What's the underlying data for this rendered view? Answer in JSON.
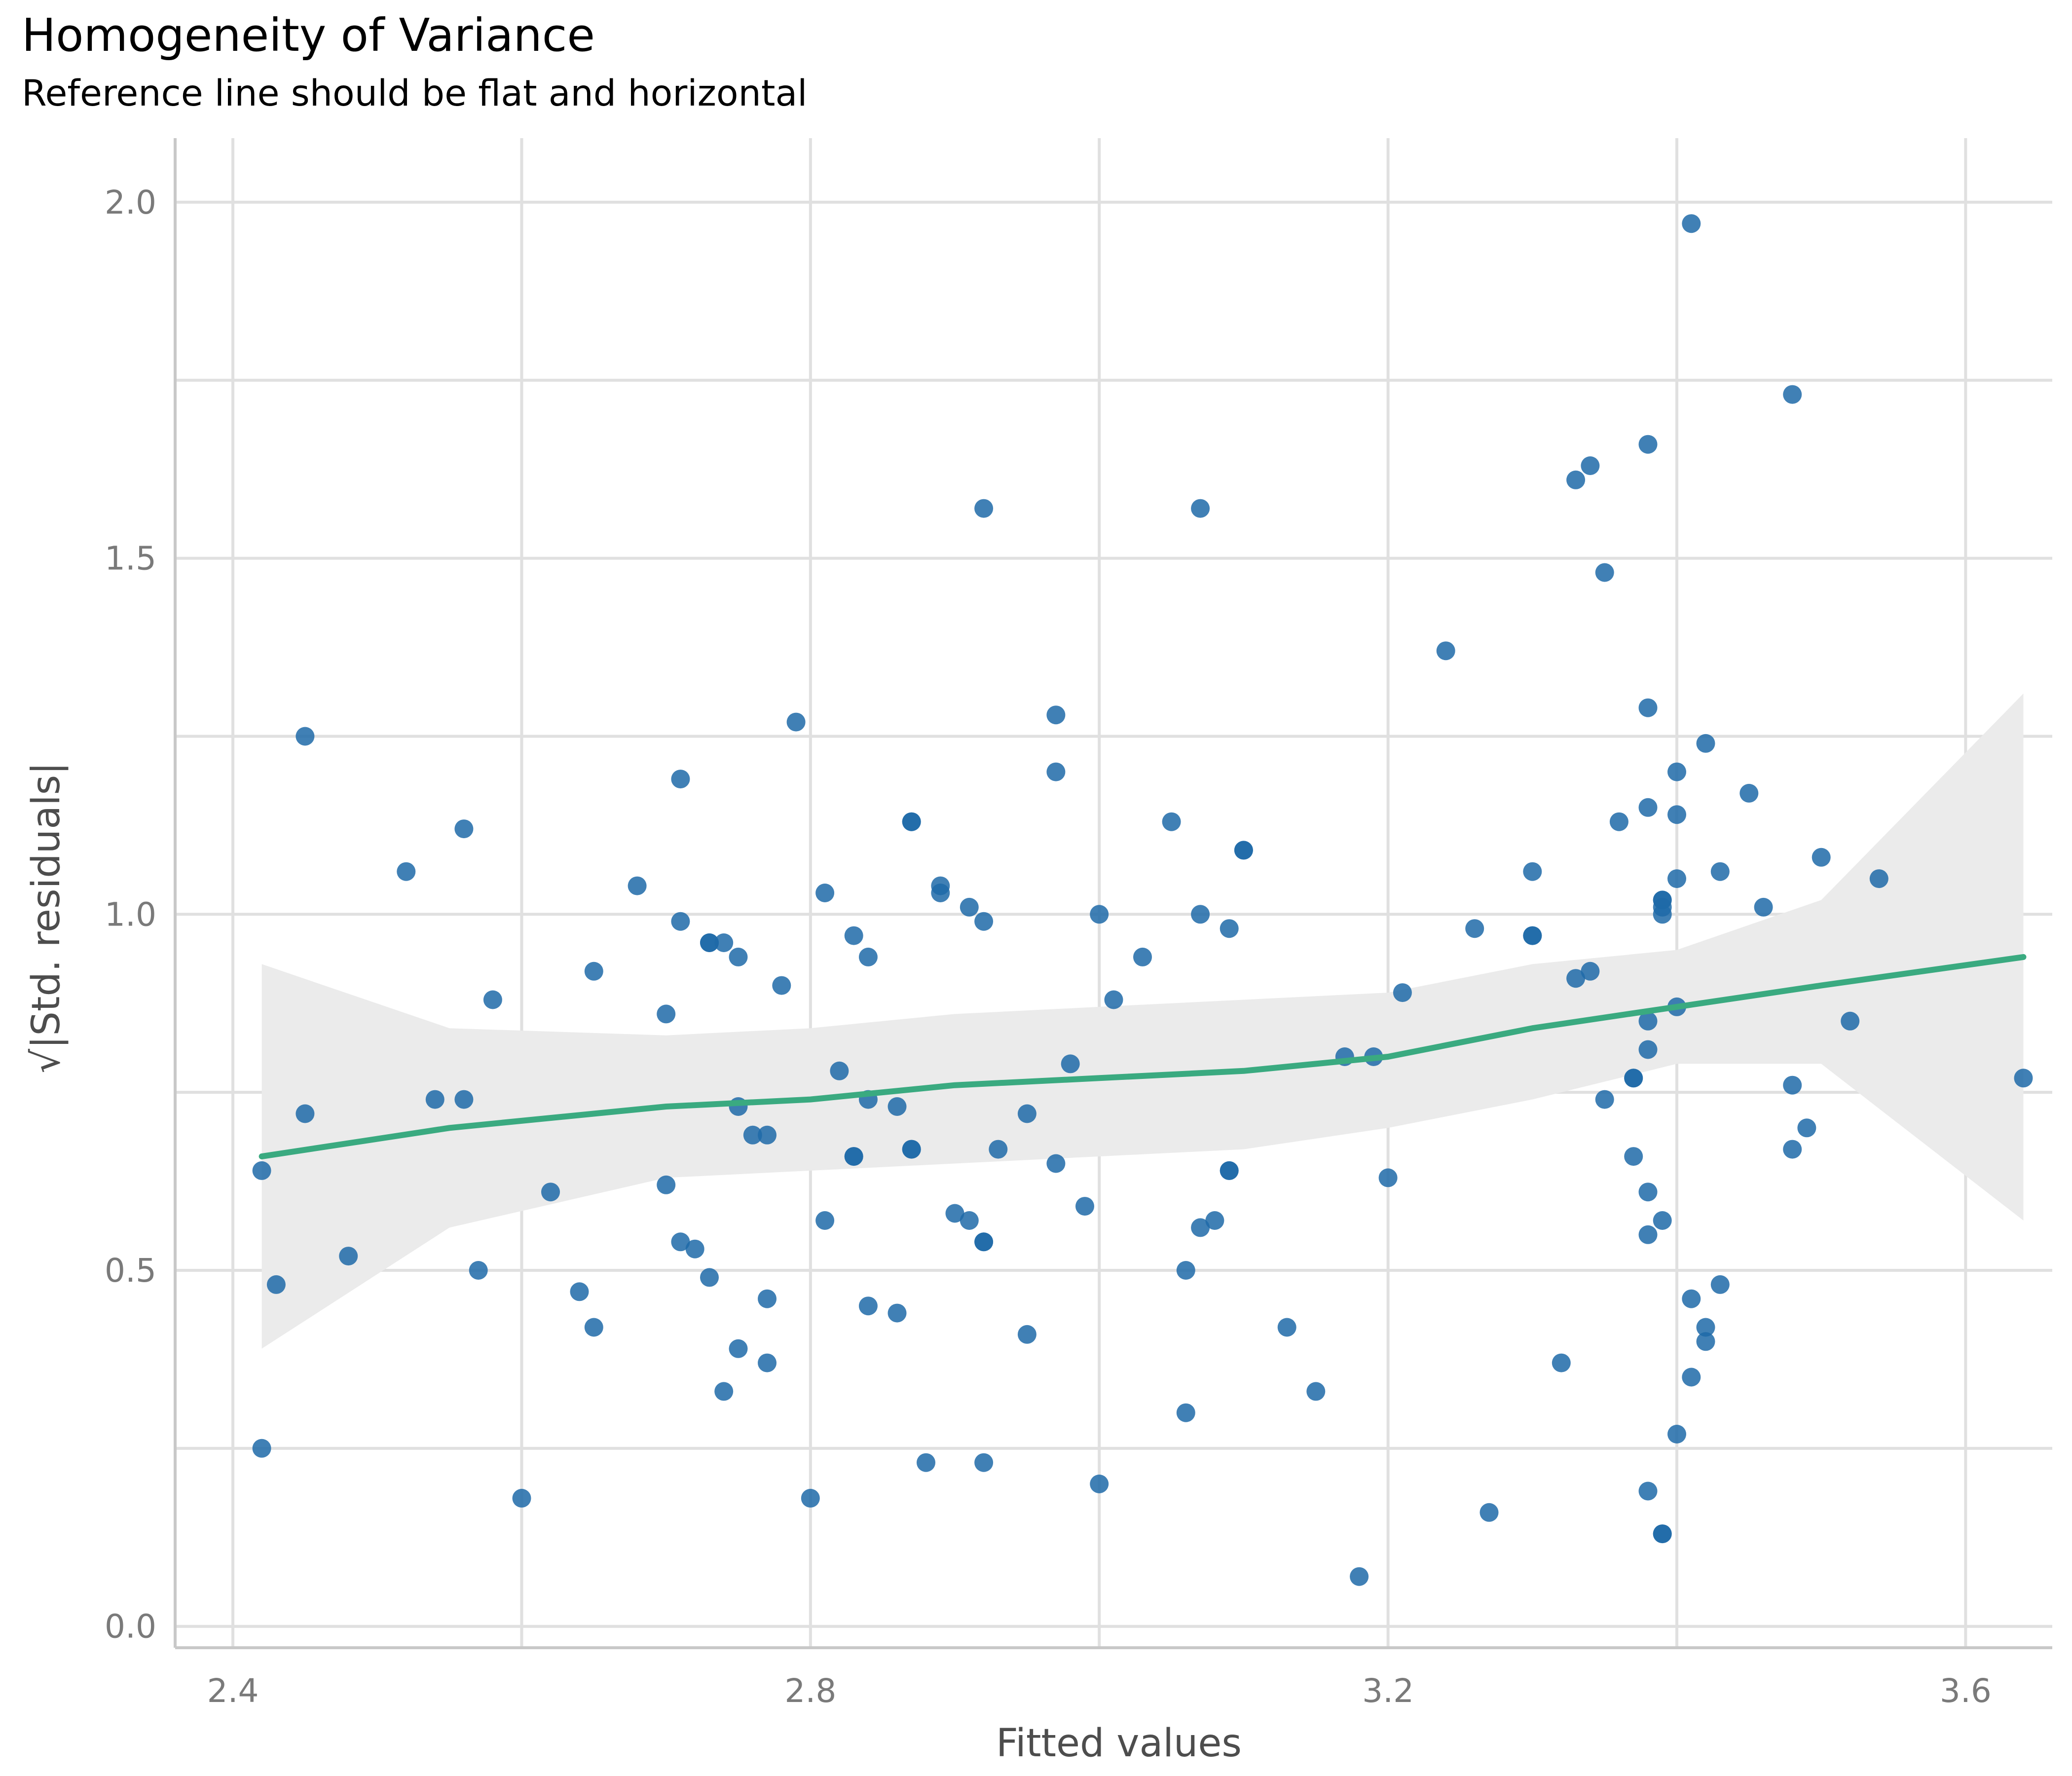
{
  "chart_data": {
    "type": "scatter",
    "title": "Homogeneity of Variance",
    "subtitle": "Reference line should be flat and horizontal",
    "xlabel": "Fitted values",
    "ylabel": "√|Std. residuals|",
    "xlim": [
      2.36,
      3.66
    ],
    "ylim": [
      -0.03,
      2.09
    ],
    "x_ticks": [
      "2.4",
      "2.8",
      "3.2",
      "3.6"
    ],
    "y_ticks": [
      "0.0",
      "0.5",
      "1.0",
      "1.5",
      "2.0"
    ],
    "grid": true,
    "colors": {
      "points": "#1f6aa8",
      "smooth": "#3aaa80",
      "band": "#ebebeb",
      "grid": "#e0e0e0",
      "axis": "#c8c8c8"
    },
    "points": [
      [
        2.42,
        0.64
      ],
      [
        2.42,
        0.25
      ],
      [
        2.43,
        0.48
      ],
      [
        2.45,
        1.25
      ],
      [
        2.45,
        0.72
      ],
      [
        2.48,
        0.52
      ],
      [
        2.52,
        1.06
      ],
      [
        2.54,
        0.74
      ],
      [
        2.56,
        0.74
      ],
      [
        2.56,
        1.12
      ],
      [
        2.57,
        0.5
      ],
      [
        2.58,
        0.88
      ],
      [
        2.6,
        0.18
      ],
      [
        2.62,
        0.61
      ],
      [
        2.64,
        0.47
      ],
      [
        2.65,
        0.42
      ],
      [
        2.65,
        0.92
      ],
      [
        2.68,
        1.04
      ],
      [
        2.7,
        0.86
      ],
      [
        2.7,
        0.62
      ],
      [
        2.71,
        1.19
      ],
      [
        2.71,
        0.99
      ],
      [
        2.71,
        0.54
      ],
      [
        2.72,
        0.53
      ],
      [
        2.73,
        0.96
      ],
      [
        2.73,
        0.96
      ],
      [
        2.73,
        0.49
      ],
      [
        2.74,
        0.33
      ],
      [
        2.74,
        0.96
      ],
      [
        2.75,
        0.73
      ],
      [
        2.75,
        0.94
      ],
      [
        2.75,
        0.39
      ],
      [
        2.76,
        0.69
      ],
      [
        2.77,
        0.46
      ],
      [
        2.77,
        0.37
      ],
      [
        2.77,
        0.69
      ],
      [
        2.78,
        0.9
      ],
      [
        2.79,
        1.27
      ],
      [
        2.8,
        0.18
      ],
      [
        2.81,
        0.57
      ],
      [
        2.81,
        1.03
      ],
      [
        2.82,
        0.78
      ],
      [
        2.83,
        0.97
      ],
      [
        2.83,
        0.66
      ],
      [
        2.83,
        0.66
      ],
      [
        2.84,
        0.74
      ],
      [
        2.84,
        0.94
      ],
      [
        2.84,
        0.45
      ],
      [
        2.86,
        0.73
      ],
      [
        2.86,
        0.44
      ],
      [
        2.87,
        1.13
      ],
      [
        2.87,
        1.13
      ],
      [
        2.87,
        0.67
      ],
      [
        2.87,
        0.67
      ],
      [
        2.88,
        0.23
      ],
      [
        2.89,
        1.04
      ],
      [
        2.89,
        1.03
      ],
      [
        2.9,
        0.58
      ],
      [
        2.91,
        0.57
      ],
      [
        2.91,
        1.01
      ],
      [
        2.92,
        1.57
      ],
      [
        2.92,
        0.99
      ],
      [
        2.92,
        0.54
      ],
      [
        2.92,
        0.54
      ],
      [
        2.92,
        0.23
      ],
      [
        2.93,
        0.67
      ],
      [
        2.95,
        0.72
      ],
      [
        2.95,
        0.41
      ],
      [
        2.97,
        1.28
      ],
      [
        2.97,
        1.2
      ],
      [
        2.97,
        0.65
      ],
      [
        2.98,
        0.79
      ],
      [
        2.99,
        0.59
      ],
      [
        3.0,
        1.0
      ],
      [
        3.0,
        0.2
      ],
      [
        3.01,
        0.88
      ],
      [
        3.03,
        0.94
      ],
      [
        3.05,
        1.13
      ],
      [
        3.06,
        0.5
      ],
      [
        3.06,
        0.3
      ],
      [
        3.07,
        1.57
      ],
      [
        3.07,
        1.0
      ],
      [
        3.07,
        0.56
      ],
      [
        3.08,
        0.57
      ],
      [
        3.09,
        0.64
      ],
      [
        3.09,
        0.64
      ],
      [
        3.09,
        0.98
      ],
      [
        3.1,
        1.09
      ],
      [
        3.1,
        1.09
      ],
      [
        3.13,
        0.42
      ],
      [
        3.15,
        0.33
      ],
      [
        3.17,
        0.8
      ],
      [
        3.18,
        0.07
      ],
      [
        3.19,
        0.8
      ],
      [
        3.2,
        0.63
      ],
      [
        3.21,
        0.89
      ],
      [
        3.24,
        1.37
      ],
      [
        3.26,
        0.98
      ],
      [
        3.27,
        0.16
      ],
      [
        3.3,
        1.06
      ],
      [
        3.3,
        0.97
      ],
      [
        3.3,
        0.97
      ],
      [
        3.32,
        0.37
      ],
      [
        3.33,
        1.61
      ],
      [
        3.33,
        0.91
      ],
      [
        3.34,
        1.63
      ],
      [
        3.34,
        0.92
      ],
      [
        3.35,
        1.48
      ],
      [
        3.35,
        0.74
      ],
      [
        3.36,
        1.13
      ],
      [
        3.37,
        0.77
      ],
      [
        3.37,
        0.77
      ],
      [
        3.37,
        0.66
      ],
      [
        3.38,
        1.66
      ],
      [
        3.38,
        1.29
      ],
      [
        3.38,
        1.15
      ],
      [
        3.38,
        0.85
      ],
      [
        3.38,
        0.81
      ],
      [
        3.38,
        0.61
      ],
      [
        3.38,
        0.55
      ],
      [
        3.38,
        0.19
      ],
      [
        3.39,
        1.02
      ],
      [
        3.39,
        1.02
      ],
      [
        3.39,
        1.01
      ],
      [
        3.39,
        1.0
      ],
      [
        3.39,
        0.57
      ],
      [
        3.39,
        0.13
      ],
      [
        3.39,
        0.13
      ],
      [
        3.4,
        1.2
      ],
      [
        3.4,
        1.14
      ],
      [
        3.4,
        1.05
      ],
      [
        3.4,
        0.87
      ],
      [
        3.4,
        0.27
      ],
      [
        3.41,
        1.97
      ],
      [
        3.41,
        0.46
      ],
      [
        3.41,
        0.35
      ],
      [
        3.42,
        1.24
      ],
      [
        3.42,
        0.42
      ],
      [
        3.42,
        0.4
      ],
      [
        3.43,
        1.06
      ],
      [
        3.43,
        0.48
      ],
      [
        3.45,
        1.17
      ],
      [
        3.46,
        1.01
      ],
      [
        3.48,
        1.73
      ],
      [
        3.48,
        0.76
      ],
      [
        3.48,
        0.67
      ],
      [
        3.49,
        0.7
      ],
      [
        3.5,
        1.08
      ],
      [
        3.52,
        0.85
      ],
      [
        3.54,
        1.05
      ],
      [
        3.64,
        0.77
      ]
    ],
    "smooth": {
      "x": [
        2.42,
        2.55,
        2.7,
        2.8,
        2.9,
        3.0,
        3.1,
        3.2,
        3.3,
        3.4,
        3.5,
        3.64
      ],
      "y": [
        0.66,
        0.7,
        0.73,
        0.74,
        0.76,
        0.77,
        0.78,
        0.8,
        0.84,
        0.87,
        0.9,
        0.94
      ],
      "lower": [
        0.39,
        0.56,
        0.63,
        0.64,
        0.65,
        0.66,
        0.67,
        0.7,
        0.74,
        0.79,
        0.79,
        0.57
      ],
      "upper": [
        0.93,
        0.84,
        0.83,
        0.84,
        0.86,
        0.87,
        0.88,
        0.89,
        0.93,
        0.95,
        1.02,
        1.31
      ]
    }
  }
}
